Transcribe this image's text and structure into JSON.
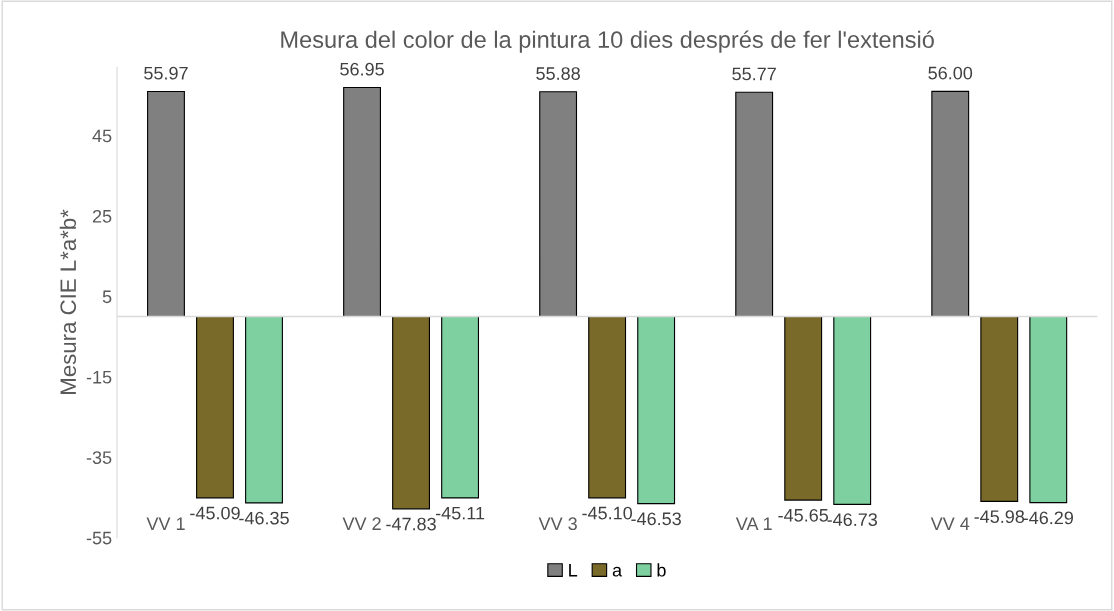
{
  "chart_data": {
    "type": "bar",
    "title": "Mesura del color de la pintura 10 dies després de fer l'extensió",
    "ylabel": "Mesura CIE L*a*b*",
    "categories": [
      "VV 1",
      "VV 2",
      "VV 3",
      "VA 1",
      "VV 4"
    ],
    "series": [
      {
        "name": "L",
        "color": "#808080",
        "values": [
          55.97,
          56.95,
          55.88,
          55.77,
          56.0
        ],
        "value_labels": [
          "55.97",
          "56.95",
          "55.88",
          "55.77",
          "56.00"
        ]
      },
      {
        "name": "a",
        "color": "#7a6a2a",
        "values": [
          -45.09,
          -47.83,
          -45.1,
          -45.65,
          -45.98
        ],
        "value_labels": [
          "-45.09",
          "-47.83",
          "-45.10",
          "-45.65",
          "-45.98"
        ]
      },
      {
        "name": "b",
        "color": "#7fd0a0",
        "values": [
          -46.35,
          -45.11,
          -46.53,
          -46.73,
          -46.29
        ],
        "value_labels": [
          "-46.35",
          "-45.11",
          "-46.53",
          "-46.73",
          "-46.29"
        ]
      }
    ],
    "ylim": [
      -55,
      62
    ],
    "yticks": [
      -55,
      -35,
      -15,
      5,
      25,
      45
    ],
    "grid": false,
    "legend": "bottom"
  }
}
